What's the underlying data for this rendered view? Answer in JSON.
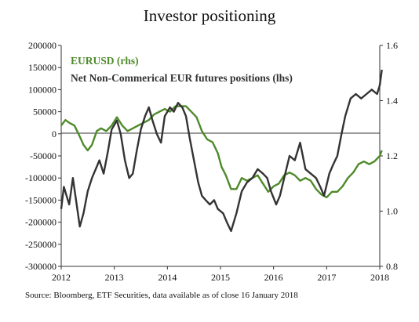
{
  "chart_data": {
    "type": "line",
    "title": "Investor positioning",
    "source": "Source: Bloomberg, ETF Securities, data available as of close 16 January 2018",
    "x_ticks": [
      "2012",
      "2013",
      "2014",
      "2015",
      "2016",
      "2017",
      "2018"
    ],
    "x_range": [
      2012.0,
      2018.0
    ],
    "y_left": {
      "range": [
        -300000,
        200000
      ],
      "ticks": [
        "200000",
        "150000",
        "100000",
        "50000",
        "0",
        "-50000",
        "-100000",
        "-150000",
        "-200000",
        "-250000",
        "-300000"
      ],
      "tick_values": [
        200000,
        150000,
        100000,
        50000,
        0,
        -50000,
        -100000,
        -150000,
        -200000,
        -250000,
        -300000
      ]
    },
    "y_right": {
      "range": [
        0.8,
        1.6
      ],
      "ticks": [
        "1.6",
        "1.4",
        "1.2",
        "1.0",
        "0.8"
      ],
      "tick_values": [
        1.6,
        1.4,
        1.2,
        1.0,
        0.8
      ]
    },
    "legend": [
      {
        "label": "EURUSD  (rhs)",
        "color": "#4e8a2a"
      },
      {
        "label": "Net Non-Commerical EUR futures positions (lhs)",
        "color": "#333333"
      }
    ],
    "series": [
      {
        "name": "EURUSD",
        "axis": "right",
        "color": "#4e8a2a",
        "x": [
          2012.0,
          2012.08,
          2012.15,
          2012.25,
          2012.35,
          2012.42,
          2012.5,
          2012.58,
          2012.67,
          2012.75,
          2012.85,
          2012.95,
          2013.05,
          2013.15,
          2013.25,
          2013.35,
          2013.45,
          2013.55,
          2013.65,
          2013.75,
          2013.85,
          2013.95,
          2014.05,
          2014.15,
          2014.25,
          2014.35,
          2014.45,
          2014.55,
          2014.65,
          2014.75,
          2014.85,
          2014.95,
          2015.02,
          2015.1,
          2015.2,
          2015.3,
          2015.4,
          2015.5,
          2015.6,
          2015.7,
          2015.8,
          2015.9,
          2016.0,
          2016.1,
          2016.2,
          2016.3,
          2016.4,
          2016.5,
          2016.6,
          2016.7,
          2016.8,
          2016.9,
          2017.0,
          2017.1,
          2017.2,
          2017.3,
          2017.4,
          2017.5,
          2017.6,
          2017.7,
          2017.8,
          2017.9,
          2018.0,
          2018.04
        ],
        "y": [
          1.31,
          1.33,
          1.32,
          1.31,
          1.27,
          1.24,
          1.22,
          1.24,
          1.29,
          1.3,
          1.29,
          1.31,
          1.34,
          1.31,
          1.29,
          1.3,
          1.31,
          1.32,
          1.33,
          1.35,
          1.36,
          1.37,
          1.36,
          1.38,
          1.38,
          1.38,
          1.36,
          1.34,
          1.29,
          1.26,
          1.25,
          1.21,
          1.16,
          1.13,
          1.08,
          1.08,
          1.12,
          1.11,
          1.12,
          1.13,
          1.1,
          1.07,
          1.09,
          1.1,
          1.13,
          1.14,
          1.13,
          1.11,
          1.12,
          1.11,
          1.08,
          1.06,
          1.05,
          1.07,
          1.07,
          1.09,
          1.12,
          1.14,
          1.17,
          1.18,
          1.17,
          1.18,
          1.2,
          1.22
        ]
      },
      {
        "name": "Net Non-Commerical EUR futures positions",
        "axis": "left",
        "color": "#333333",
        "x": [
          2012.0,
          2012.05,
          2012.1,
          2012.15,
          2012.22,
          2012.28,
          2012.35,
          2012.42,
          2012.5,
          2012.58,
          2012.65,
          2012.72,
          2012.8,
          2012.88,
          2012.95,
          2013.05,
          2013.12,
          2013.2,
          2013.28,
          2013.35,
          2013.42,
          2013.5,
          2013.58,
          2013.65,
          2013.72,
          2013.8,
          2013.88,
          2013.95,
          2014.05,
          2014.12,
          2014.2,
          2014.28,
          2014.35,
          2014.42,
          2014.5,
          2014.58,
          2014.65,
          2014.72,
          2014.8,
          2014.88,
          2014.95,
          2015.05,
          2015.12,
          2015.2,
          2015.3,
          2015.4,
          2015.5,
          2015.6,
          2015.7,
          2015.8,
          2015.88,
          2015.95,
          2016.05,
          2016.12,
          2016.2,
          2016.3,
          2016.4,
          2016.5,
          2016.6,
          2016.7,
          2016.8,
          2016.88,
          2016.95,
          2017.05,
          2017.12,
          2017.2,
          2017.28,
          2017.35,
          2017.45,
          2017.55,
          2017.65,
          2017.75,
          2017.85,
          2017.95,
          2018.0,
          2018.04
        ],
        "y": [
          -170000,
          -120000,
          -140000,
          -160000,
          -100000,
          -150000,
          -210000,
          -180000,
          -130000,
          -100000,
          -80000,
          -60000,
          -90000,
          -40000,
          10000,
          30000,
          0,
          -60000,
          -100000,
          -90000,
          -40000,
          10000,
          40000,
          60000,
          30000,
          0,
          -20000,
          40000,
          60000,
          50000,
          70000,
          60000,
          40000,
          -10000,
          -60000,
          -110000,
          -140000,
          -150000,
          -160000,
          -150000,
          -170000,
          -180000,
          -200000,
          -220000,
          -180000,
          -130000,
          -110000,
          -100000,
          -80000,
          -90000,
          -100000,
          -130000,
          -160000,
          -140000,
          -100000,
          -50000,
          -60000,
          -20000,
          -80000,
          -90000,
          -100000,
          -120000,
          -140000,
          -90000,
          -70000,
          -50000,
          0,
          40000,
          80000,
          90000,
          80000,
          90000,
          100000,
          90000,
          110000,
          145000
        ]
      }
    ]
  }
}
